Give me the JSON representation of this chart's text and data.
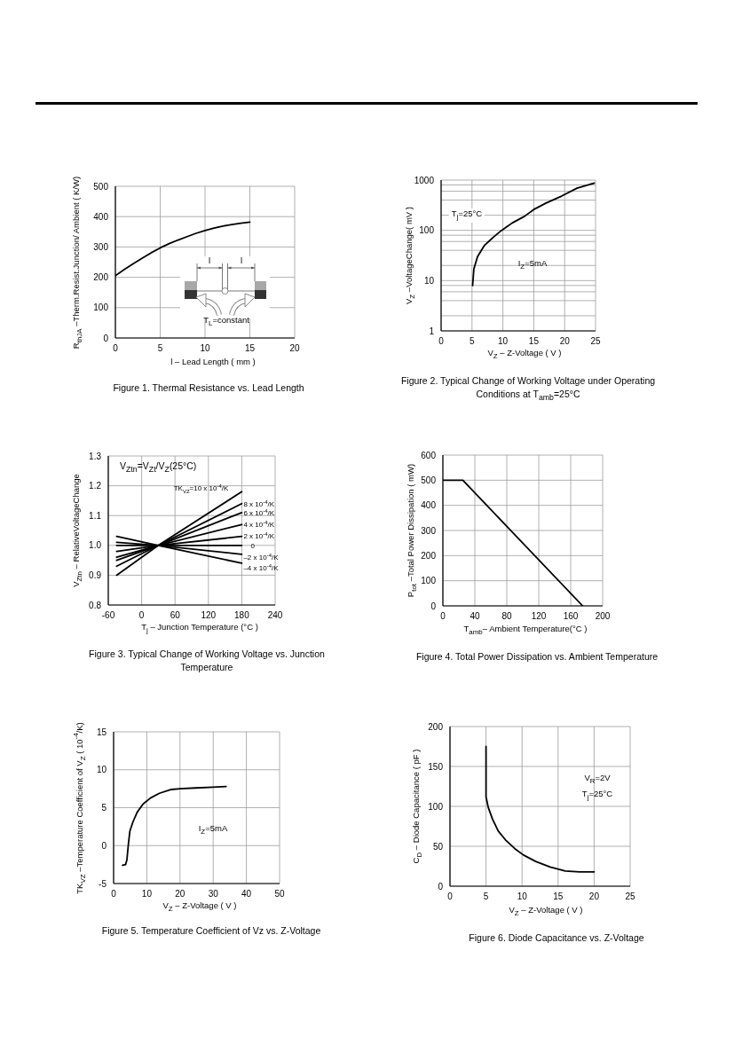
{
  "chart_data": [
    {
      "type": "line",
      "title": "Figure 1. Thermal Resistance vs. Lead Length",
      "xlabel": "l – Lead Length ( mm )",
      "ylabel": "R$_{thJA}$ –Therm.Resist.Junction/ Ambient ( K/W)",
      "annotations": [
        "l",
        "l",
        "T$_{L}$=constant"
      ],
      "x": [
        0,
        1,
        2,
        3,
        4,
        5,
        6,
        7,
        8,
        9,
        10,
        11,
        12,
        13,
        14,
        15
      ],
      "series": [
        {
          "color": "#000000",
          "values": [
            205,
            226,
            245,
            263,
            281,
            297,
            311,
            323,
            334,
            345,
            354,
            362,
            369,
            374,
            378,
            382
          ]
        }
      ],
      "xlim": [
        0,
        20
      ],
      "xticks": [
        0,
        5,
        10,
        15,
        20
      ],
      "ylim": [
        0,
        500
      ],
      "yticks": [
        0,
        100,
        200,
        300,
        400,
        500
      ],
      "grid": true
    },
    {
      "type": "line",
      "title": "Figure 2. Typical Change of Working Voltage under Operating Conditions at T$_{amb}$=25°C",
      "xlabel": "V$_{Z}$ – Z-Voltage ( V )",
      "ylabel": "V$_{Z}$ –VoltageChange( mV )",
      "annotations": [
        "T$_{j}$=25°C",
        "I$_{Z}$=5mA"
      ],
      "x": [
        5.1,
        5.3,
        5.9,
        7,
        8.5,
        9.8,
        11.5,
        13.5,
        15,
        17,
        19.5,
        22,
        24.8
      ],
      "series": [
        {
          "color": "#000000",
          "values": [
            8,
            17,
            30,
            50,
            74,
            100,
            140,
            190,
            260,
            350,
            480,
            690,
            870
          ]
        }
      ],
      "xlim": [
        0,
        25
      ],
      "xticks": [
        0,
        5,
        10,
        15,
        20,
        25
      ],
      "ylim": [
        1,
        1000
      ],
      "yticks": [
        1,
        {
          "value": 2,
          "label": null
        },
        {
          "value": 4,
          "label": null
        },
        {
          "value": 6,
          "label": null
        },
        {
          "value": 8,
          "label": null
        },
        10,
        {
          "value": 20,
          "label": null
        },
        {
          "value": 40,
          "label": null
        },
        {
          "value": 60,
          "label": null
        },
        {
          "value": 80,
          "label": null
        },
        100,
        {
          "value": 200,
          "label": null
        },
        {
          "value": 400,
          "label": null
        },
        {
          "value": 600,
          "label": null
        },
        {
          "value": 800,
          "label": null
        },
        1000
      ],
      "log": true,
      "grid": true
    },
    {
      "type": "line",
      "title": "Figure 3. Typical Change of Working Voltage vs. Junction Temperature",
      "xlabel": "T$_{j}$ – Junction Temperature (°C )",
      "ylabel": "V$_{Ztn}$ – RelativeVoltageChange",
      "annotations": [
        "V$_{Ztn}$=V$_{Zt}$/V$_{Z}$(25°C)"
      ],
      "x": [
        -45,
        30,
        180
      ],
      "series": [
        {
          "name": "TK$_{VZ}$=10 x 10$^{-4}$/K",
          "color": "#000000",
          "values": [
            0.9,
            1.0,
            1.18
          ]
        },
        {
          "name": "8 x 10$^{-4}$/K",
          "color": "#000000",
          "values": [
            0.93,
            1.0,
            1.14
          ]
        },
        {
          "name": "6 x 10$^{-4}$/K",
          "color": "#000000",
          "values": [
            0.95,
            1.0,
            1.11
          ]
        },
        {
          "name": "4 x 10$^{-4}$/K",
          "color": "#000000",
          "values": [
            0.96,
            1.0,
            1.07
          ]
        },
        {
          "name": "2 x 10$^{-4}$/K",
          "color": "#000000",
          "values": [
            0.98,
            1.0,
            1.03
          ]
        },
        {
          "name": "0",
          "color": "#000000",
          "values": [
            1.0,
            1.0,
            1.0
          ]
        },
        {
          "name": "–2 x 10$^{-4}$/K",
          "color": "#000000",
          "values": [
            1.01,
            1.0,
            0.97
          ]
        },
        {
          "name": "–4 x 10$^{-4}$/K",
          "color": "#000000",
          "values": [
            1.03,
            1.0,
            0.94
          ]
        }
      ],
      "xlim": [
        -60,
        240
      ],
      "xticks": [
        -60,
        0,
        60,
        120,
        180,
        240
      ],
      "ylim": [
        0.8,
        1.3
      ],
      "yticks": [
        0.8,
        0.9,
        {
          "value": 1,
          "label": "1.0"
        },
        1.1,
        1.2,
        1.3
      ],
      "grid": true
    },
    {
      "type": "line",
      "title": "Figure 4. Total Power Dissipation vs. Ambient Temperature",
      "xlabel": "T$_{amb}$– Ambient Temperature(°C )",
      "ylabel": "P$_{tot}$ –Total Power Dissipation ( mW)",
      "x": [
        0,
        25,
        175
      ],
      "series": [
        {
          "color": "#000000",
          "values": [
            500,
            500,
            0
          ]
        }
      ],
      "xlim": [
        0,
        200
      ],
      "xticks": [
        0,
        40,
        80,
        120,
        160,
        200
      ],
      "ylim": [
        0,
        600
      ],
      "yticks": [
        0,
        100,
        200,
        300,
        400,
        500,
        600
      ],
      "grid": true
    },
    {
      "type": "line",
      "title": "Figure 5. Temperature Coefficient of Vz vs. Z-Voltage",
      "xlabel": "V$_{Z}$ – Z-Voltage ( V )",
      "ylabel": "TK$_{VZ}$ –Temperature Coefficient of V$_{Z}$ ( 10$^{-4}$/K)",
      "annotations": [
        "I$_{Z}$=5mA"
      ],
      "x": [
        2.7,
        3.6,
        4,
        4.5,
        4.9,
        5.8,
        7.1,
        8.9,
        11.2,
        13.8,
        17.4,
        20,
        24.6,
        29.9,
        33.9
      ],
      "series": [
        {
          "color": "#000000",
          "values": [
            -2.6,
            -2.5,
            -1.9,
            0.4,
            1.9,
            3.1,
            4.4,
            5.5,
            6.3,
            6.9,
            7.4,
            7.5,
            7.6,
            7.7,
            7.8
          ]
        }
      ],
      "xlim": [
        0,
        50
      ],
      "xticks": [
        0,
        10,
        20,
        30,
        40,
        50
      ],
      "ylim": [
        -5,
        15
      ],
      "yticks": [
        -5,
        0,
        5,
        10,
        15
      ],
      "grid": true
    },
    {
      "type": "line",
      "title": "Figure 6. Diode Capacitance vs. Z-Voltage",
      "xlabel": "V$_{Z}$ – Z-Voltage ( V )",
      "ylabel": "C$_{D}$ – Diode Capacitance ( pF )",
      "annotations": [
        "V$_{R}$=2V",
        "T$_{j}$=25°C"
      ],
      "x": [
        5,
        5,
        5.3,
        5.9,
        6.7,
        7.7,
        9,
        10.2,
        11.9,
        13.9,
        16,
        18,
        20
      ],
      "series": [
        {
          "color": "#000000",
          "values": [
            175,
            112,
            99,
            84,
            69,
            58,
            47,
            39,
            31,
            24,
            19,
            18,
            18
          ]
        }
      ],
      "xlim": [
        0,
        25
      ],
      "xticks": [
        0,
        5,
        10,
        15,
        20,
        25
      ],
      "ylim": [
        0,
        200
      ],
      "yticks": [
        0,
        50,
        100,
        150,
        200
      ],
      "grid": true
    }
  ]
}
